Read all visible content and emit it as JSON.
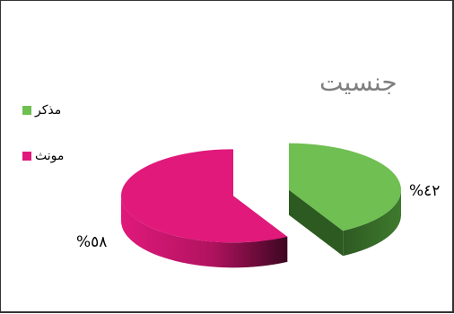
{
  "chart_data": {
    "type": "pie",
    "title": "جنسیت",
    "categories": [
      "مذکر",
      "مونث"
    ],
    "values": [
      42,
      58
    ],
    "data_labels": [
      "%٤٢",
      "%٥٨"
    ],
    "colors": [
      "#6fbf52",
      "#e0197b"
    ],
    "legend_position": "left",
    "style": "3d-exploded"
  }
}
